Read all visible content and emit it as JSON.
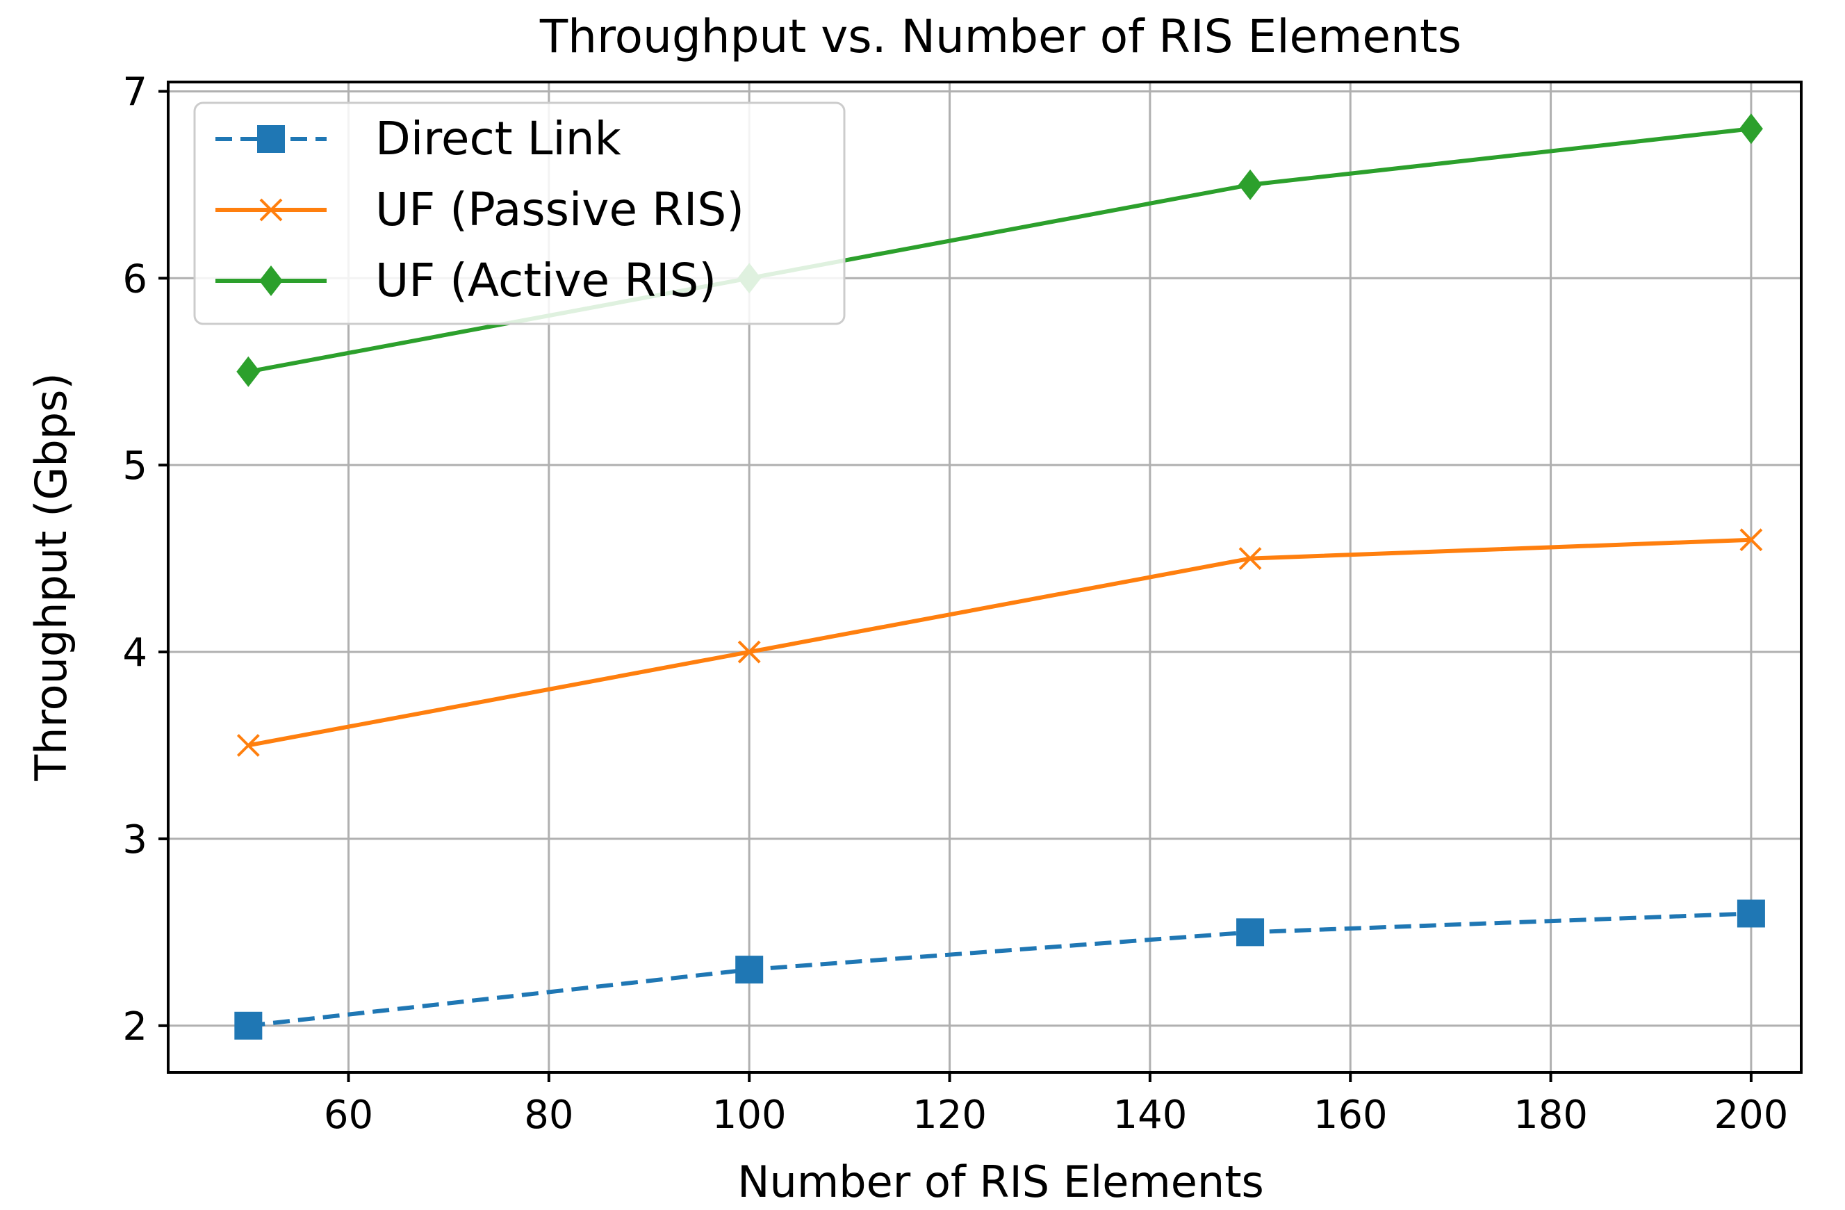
{
  "chart_data": {
    "type": "line",
    "title": "Throughput vs. Number of RIS Elements",
    "xlabel": "Number of RIS Elements",
    "ylabel": "Throughput (Gbps)",
    "x": [
      50,
      100,
      150,
      200
    ],
    "xlim": [
      42,
      205
    ],
    "ylim": [
      1.75,
      7.05
    ],
    "xticks": [
      60,
      80,
      100,
      120,
      140,
      160,
      180,
      200
    ],
    "yticks": [
      2,
      3,
      4,
      5,
      6,
      7
    ],
    "grid": true,
    "legend_position": "top-left",
    "series": [
      {
        "name": "Direct Link",
        "values": [
          2.0,
          2.3,
          2.5,
          2.6
        ],
        "color": "#1f77b4",
        "marker": "square",
        "linestyle": "dashed"
      },
      {
        "name": "UF (Passive RIS)",
        "values": [
          3.5,
          4.0,
          4.5,
          4.6
        ],
        "color": "#ff7f0e",
        "marker": "x",
        "linestyle": "solid"
      },
      {
        "name": "UF (Active RIS)",
        "values": [
          5.5,
          6.0,
          6.5,
          6.8
        ],
        "color": "#2ca02c",
        "marker": "diamond",
        "linestyle": "solid"
      }
    ]
  }
}
